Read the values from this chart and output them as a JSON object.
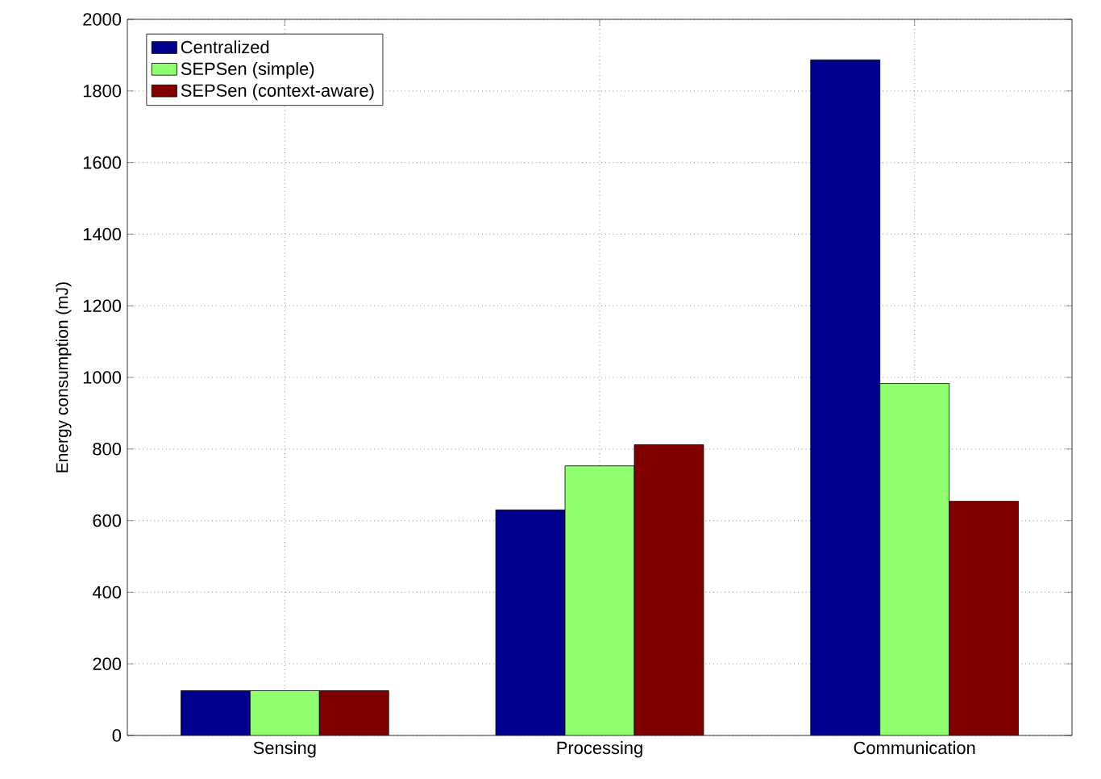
{
  "chart_data": {
    "type": "bar",
    "ylabel": "Energy consumption (mJ)",
    "categories": [
      "Sensing",
      "Processing",
      "Communication"
    ],
    "series": [
      {
        "name": "Centralized",
        "color": "#00008f",
        "values": [
          125,
          630,
          1887
        ]
      },
      {
        "name": "SEPSen (simple)",
        "color": "#8fff6f",
        "values": [
          125,
          753,
          983
        ]
      },
      {
        "name": "SEPSen (context-aware)",
        "color": "#800000",
        "values": [
          125,
          812,
          654
        ]
      }
    ],
    "ylim": [
      0,
      2000
    ],
    "yticks": [
      0,
      200,
      400,
      600,
      800,
      1000,
      1200,
      1400,
      1600,
      1800,
      2000
    ],
    "grid": true,
    "legend": "top left"
  }
}
